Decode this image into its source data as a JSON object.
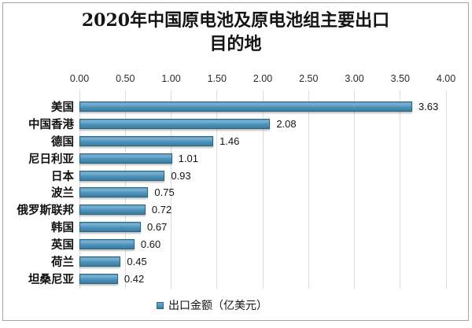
{
  "title": {
    "line1": "2020年中国原电池及原电池组主要出口",
    "line2": "目的地"
  },
  "legend": {
    "label": "出口金额（亿美元）"
  },
  "chart_data": {
    "type": "bar",
    "orientation": "horizontal",
    "title": "2020年中国原电池及原电池组主要出口目的地",
    "categories": [
      "美国",
      "中国香港",
      "德国",
      "尼日利亚",
      "日本",
      "波兰",
      "俄罗斯联邦",
      "韩国",
      "英国",
      "荷兰",
      "坦桑尼亚"
    ],
    "values": [
      3.63,
      2.08,
      1.46,
      1.01,
      0.93,
      0.75,
      0.72,
      0.67,
      0.6,
      0.45,
      0.42
    ],
    "value_label_format": "0.00",
    "series_name": "出口金额（亿美元）",
    "xlabel": "",
    "ylabel": "",
    "xlim": [
      0,
      4
    ],
    "xticks": [
      "0.00",
      "0.50",
      "1.00",
      "1.50",
      "2.00",
      "2.50",
      "3.00",
      "3.50",
      "4.00"
    ],
    "grid": true,
    "legend_position": "bottom",
    "colors": {
      "bar": "#4f93bb",
      "bar_border": "#2d6480",
      "gridline": "#dcdcdc",
      "text": "#141414",
      "frame_border": "#a3a3a3",
      "background": "#ffffff"
    }
  }
}
